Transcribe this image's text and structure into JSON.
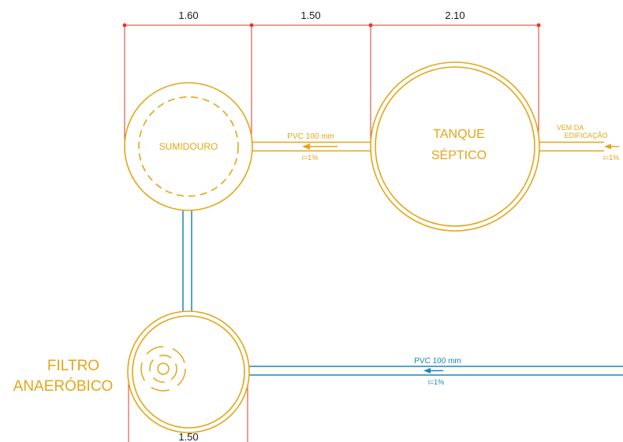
{
  "colors": {
    "gold": "#e3a617",
    "blue": "#1a87b5",
    "dimension_red": "#e03a2a",
    "text_dark": "#1a1a1a"
  },
  "dimensions": {
    "sumidouro_width": "1.60",
    "gap_width": "1.50",
    "tanque_width": "2.10",
    "filtro_width": "1.50"
  },
  "labels": {
    "sumidouro": "SUMIDOURO",
    "tanque_line1": "TANQUE",
    "tanque_line2": "SÉPTICO",
    "filtro_line1": "FILTRO",
    "filtro_line2": "ANAERÓBICO",
    "vem_line1": "VEM DA",
    "vem_line2": "EDIFICAÇÃO",
    "pipe_top": "PVC 100 mm",
    "slope_top": "i=1%",
    "slope_inlet": "i=1%",
    "pipe_bottom": "PVC 100 mm",
    "slope_bottom": "i=1%"
  },
  "icons": {
    "flow_arrow": "arrow-left-icon"
  }
}
